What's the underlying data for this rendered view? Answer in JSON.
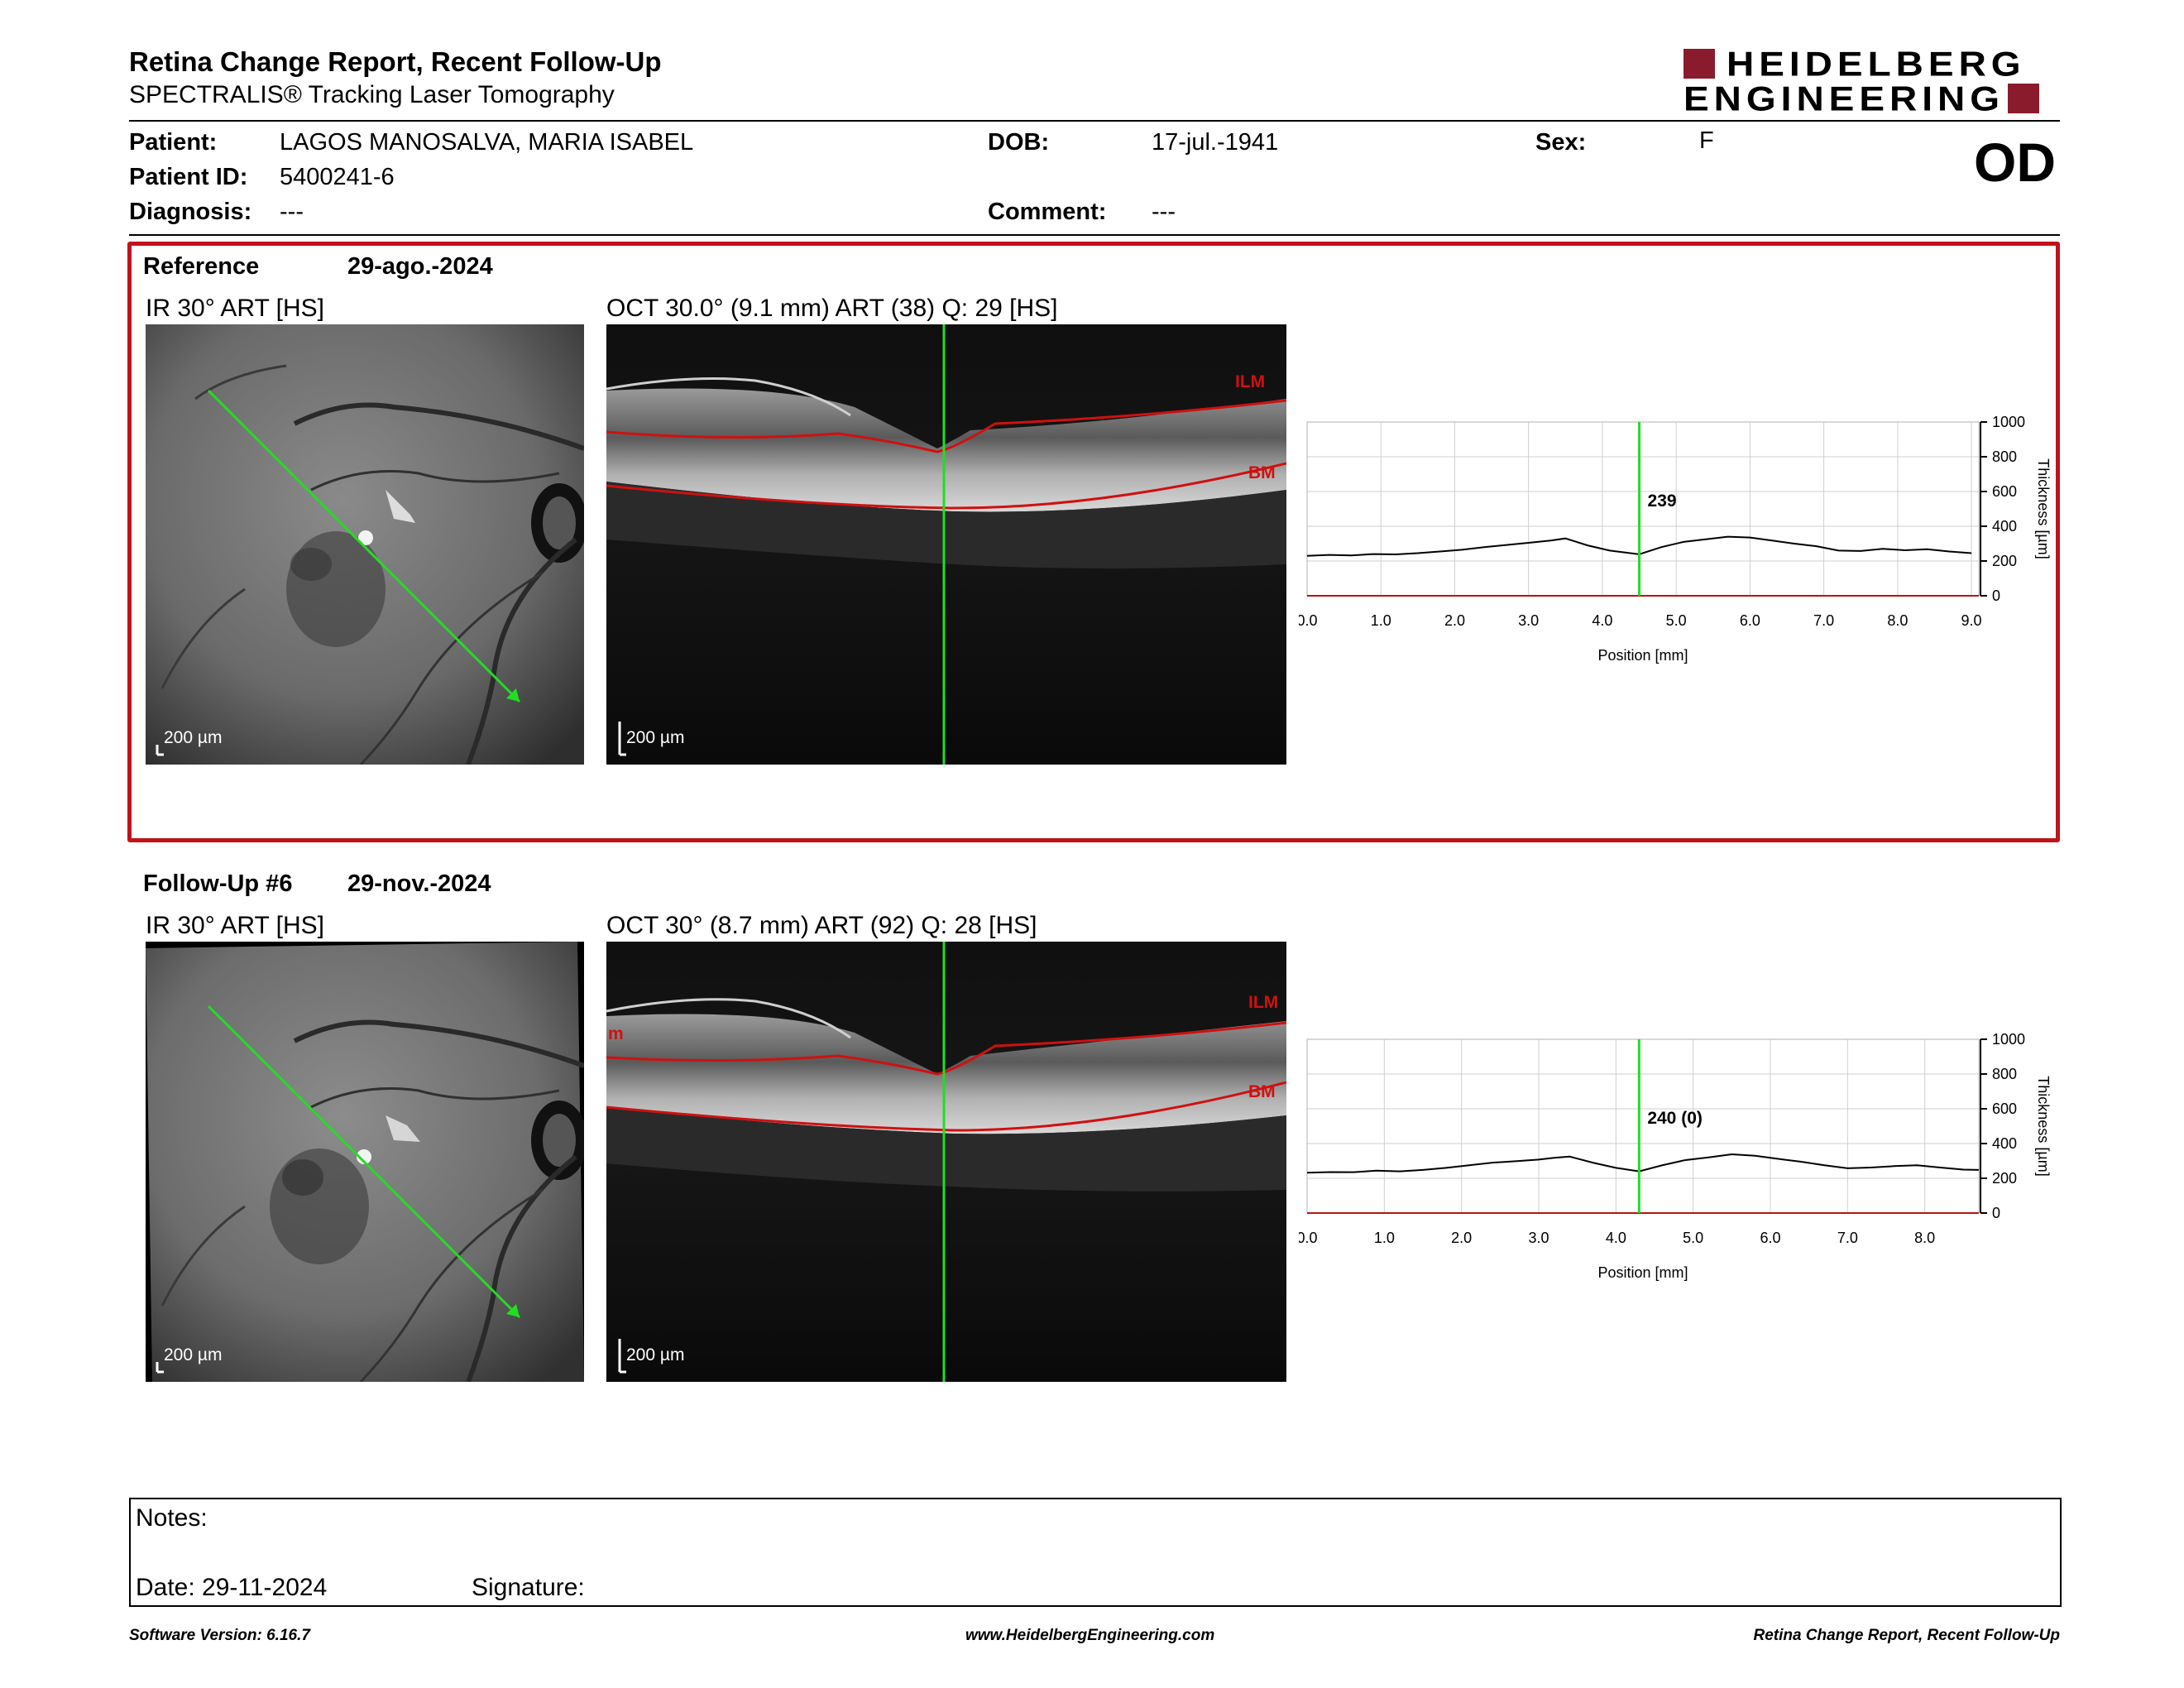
{
  "header": {
    "title": "Retina Change Report, Recent Follow-Up",
    "subtitle": "SPECTRALIS® Tracking Laser Tomography",
    "logo_line1": "HEIDELBERG",
    "logo_line2": "ENGINEERING"
  },
  "patient": {
    "patient_label": "Patient:",
    "patient_value": "LAGOS MANOSALVA, MARIA ISABEL",
    "id_label": "Patient ID:",
    "id_value": "5400241-6",
    "diagnosis_label": "Diagnosis:",
    "diagnosis_value": "---",
    "dob_label": "DOB:",
    "dob_value": "17-jul.-1941",
    "comment_label": "Comment:",
    "comment_value": "---",
    "sex_label": "Sex:",
    "sex_value": "F",
    "eye": "OD"
  },
  "reference": {
    "label": "Reference",
    "date": "29-ago.-2024",
    "ir_label": "IR 30° ART [HS]",
    "oct_label": "OCT 30.0° (9.1 mm) ART (38) Q: 29 [HS]",
    "scale_ir": "200 µm",
    "scale_oct": "200 µm",
    "ilm": "ILM",
    "bm": "BM"
  },
  "followup": {
    "label": "Follow-Up #6",
    "date": "29-nov.-2024",
    "ir_label": "IR 30° ART [HS]",
    "oct_label": "OCT 30° (8.7 mm) ART (92) Q: 28 [HS]",
    "scale_ir": "200 µm",
    "scale_oct": "200 µm",
    "ilm": "ILM",
    "bm": "BM",
    "ilm_partial": "m"
  },
  "notes": {
    "notes_label": "Notes:",
    "date_label": "Date: 29-11-2024",
    "signature_label": "Signature:"
  },
  "footer": {
    "left": "Software Version: 6.16.7",
    "center": "www.HeidelbergEngineering.com",
    "right": "Retina Change Report, Recent Follow-Up"
  },
  "colors": {
    "accent_red": "#c1121a",
    "logo_red": "#8a1b2d",
    "scan_green": "#22dd22"
  },
  "chart_data": [
    {
      "type": "line",
      "name": "reference-thickness",
      "xlabel": "Position [mm]",
      "ylabel": "Thickness [µm]",
      "xlim": [
        0,
        9.1
      ],
      "ylim": [
        0,
        1000
      ],
      "x_ticks": [
        "0.0",
        "1.0",
        "2.0",
        "3.0",
        "4.0",
        "5.0",
        "6.0",
        "7.0",
        "8.0",
        "9.0"
      ],
      "y_ticks": [
        "0",
        "200",
        "400",
        "600",
        "800",
        "1000"
      ],
      "marker_x": 4.5,
      "marker_label": "239",
      "grid": true,
      "x": [
        0.0,
        0.3,
        0.6,
        0.9,
        1.2,
        1.5,
        1.8,
        2.1,
        2.4,
        2.7,
        3.0,
        3.3,
        3.5,
        3.8,
        4.1,
        4.5,
        4.8,
        5.1,
        5.4,
        5.7,
        6.0,
        6.3,
        6.6,
        6.9,
        7.2,
        7.5,
        7.8,
        8.1,
        8.4,
        8.7,
        9.0
      ],
      "y": [
        230,
        235,
        232,
        240,
        238,
        245,
        255,
        265,
        280,
        292,
        305,
        318,
        330,
        290,
        260,
        239,
        280,
        310,
        325,
        340,
        335,
        318,
        300,
        285,
        260,
        258,
        270,
        262,
        268,
        255,
        245
      ]
    },
    {
      "type": "line",
      "name": "followup-thickness",
      "xlabel": "Position [mm]",
      "ylabel": "Thickness [µm]",
      "xlim": [
        0,
        8.7
      ],
      "ylim": [
        0,
        1000
      ],
      "x_ticks": [
        "0.0",
        "1.0",
        "2.0",
        "3.0",
        "4.0",
        "5.0",
        "6.0",
        "7.0",
        "8.0"
      ],
      "y_ticks": [
        "0",
        "200",
        "400",
        "600",
        "800",
        "1000"
      ],
      "marker_x": 4.3,
      "marker_label": "240 (0)",
      "grid": true,
      "x": [
        0.0,
        0.3,
        0.6,
        0.9,
        1.2,
        1.5,
        1.8,
        2.1,
        2.4,
        2.7,
        3.0,
        3.2,
        3.4,
        3.7,
        4.0,
        4.3,
        4.6,
        4.9,
        5.2,
        5.5,
        5.8,
        6.1,
        6.4,
        6.7,
        7.0,
        7.3,
        7.6,
        7.9,
        8.2,
        8.5,
        8.7
      ],
      "y": [
        232,
        236,
        235,
        244,
        240,
        248,
        260,
        275,
        290,
        298,
        308,
        318,
        325,
        290,
        260,
        240,
        275,
        305,
        320,
        338,
        330,
        312,
        295,
        275,
        258,
        262,
        270,
        275,
        262,
        250,
        248
      ]
    }
  ]
}
